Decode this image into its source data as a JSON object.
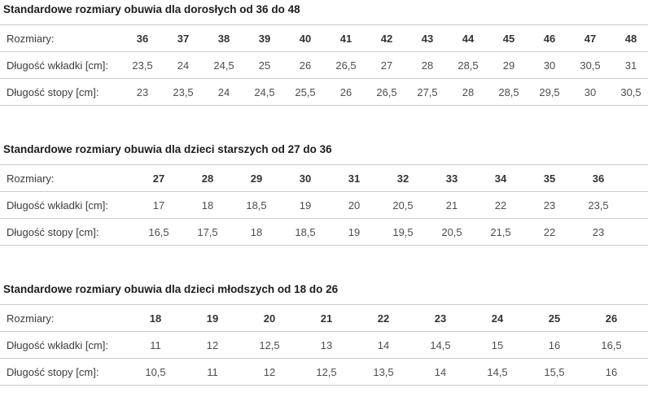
{
  "colors": {
    "background": "#ffffff",
    "divider": "#cccccc",
    "title_text": "#1d1d1d",
    "label_text": "#3c3c3c",
    "header_value_text": "#333333",
    "value_text": "#4e4e4e"
  },
  "row_labels": {
    "sizes": "Rozmiary:",
    "insole": "Długość wkładki [cm]:",
    "foot": "Długość stopy [cm]:"
  },
  "tables": [
    {
      "title": "Standardowe rozmiary obuwia dla dorosłych od 36 do 48",
      "sizes": [
        "36",
        "37",
        "38",
        "39",
        "40",
        "41",
        "42",
        "43",
        "44",
        "45",
        "46",
        "47",
        "48"
      ],
      "insole_length_cm": [
        "23,5",
        "24",
        "24,5",
        "25",
        "26",
        "26,5",
        "27",
        "28",
        "28,5",
        "29",
        "30",
        "30,5",
        "31"
      ],
      "foot_length_cm": [
        "23",
        "23,5",
        "24",
        "24,5",
        "25,5",
        "26",
        "26,5",
        "27,5",
        "28",
        "28,5",
        "29,5",
        "30",
        "30,5"
      ]
    },
    {
      "title": "Standardowe rozmiary obuwia dla dzieci starszych od 27 do 36",
      "sizes": [
        "27",
        "28",
        "29",
        "30",
        "31",
        "32",
        "33",
        "34",
        "35",
        "36"
      ],
      "insole_length_cm": [
        "17",
        "18",
        "18,5",
        "19",
        "20",
        "20,5",
        "21",
        "22",
        "23",
        "23,5"
      ],
      "foot_length_cm": [
        "16,5",
        "17,5",
        "18",
        "18,5",
        "19",
        "19,5",
        "20,5",
        "21,5",
        "22",
        "23"
      ]
    },
    {
      "title": "Standardowe rozmiary obuwia dla dzieci młodszych od 18 do 26",
      "sizes": [
        "18",
        "19",
        "20",
        "21",
        "22",
        "23",
        "24",
        "25",
        "26"
      ],
      "insole_length_cm": [
        "11",
        "12",
        "12,5",
        "13",
        "14",
        "14,5",
        "15",
        "16",
        "16,5"
      ],
      "foot_length_cm": [
        "10,5",
        "11",
        "12",
        "12,5",
        "13,5",
        "14",
        "14,5",
        "15,5",
        "16"
      ]
    }
  ]
}
